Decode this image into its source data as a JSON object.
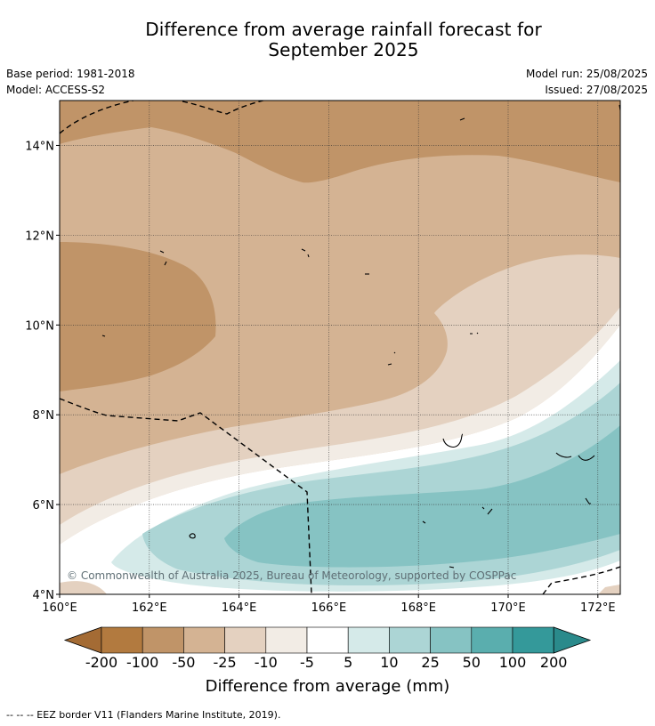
{
  "title": {
    "line1": "Difference from average rainfall forecast for",
    "line2": "September 2025"
  },
  "meta": {
    "base_period": "Base period: 1981-2018",
    "model": "Model: ACCESS-S2",
    "model_run": "Model run: 25/08/2025",
    "issued": "Issued: 27/08/2025"
  },
  "map": {
    "lon_range": [
      160,
      172.5
    ],
    "lat_range": [
      4,
      15
    ],
    "lon_ticks": [
      "160°E",
      "162°E",
      "164°E",
      "166°E",
      "168°E",
      "170°E",
      "172°E"
    ],
    "lat_ticks": [
      "14°N",
      "12°N",
      "10°N",
      "8°N",
      "6°N",
      "4°N"
    ],
    "grid": true,
    "copyright": "© Commonwealth of Australia 2025, Bureau of Meteorology, supported by COSPPac"
  },
  "colorbar": {
    "labels": [
      "-200",
      "-100",
      "-50",
      "-25",
      "-10",
      "-5",
      "5",
      "10",
      "25",
      "50",
      "100",
      "200"
    ],
    "colors": [
      "#a46b34",
      "#b27a3f",
      "#c09468",
      "#d4b393",
      "#e4d1c0",
      "#f2ece5",
      "#ffffff",
      "#d5eae9",
      "#acd5d5",
      "#86c3c3",
      "#5aaeae",
      "#34999a",
      "#2a8a8b"
    ],
    "title": "Difference from average (mm)"
  },
  "footnote": "-- -- -- EEZ border V11 (Flanders Marine Institute, 2019)."
}
